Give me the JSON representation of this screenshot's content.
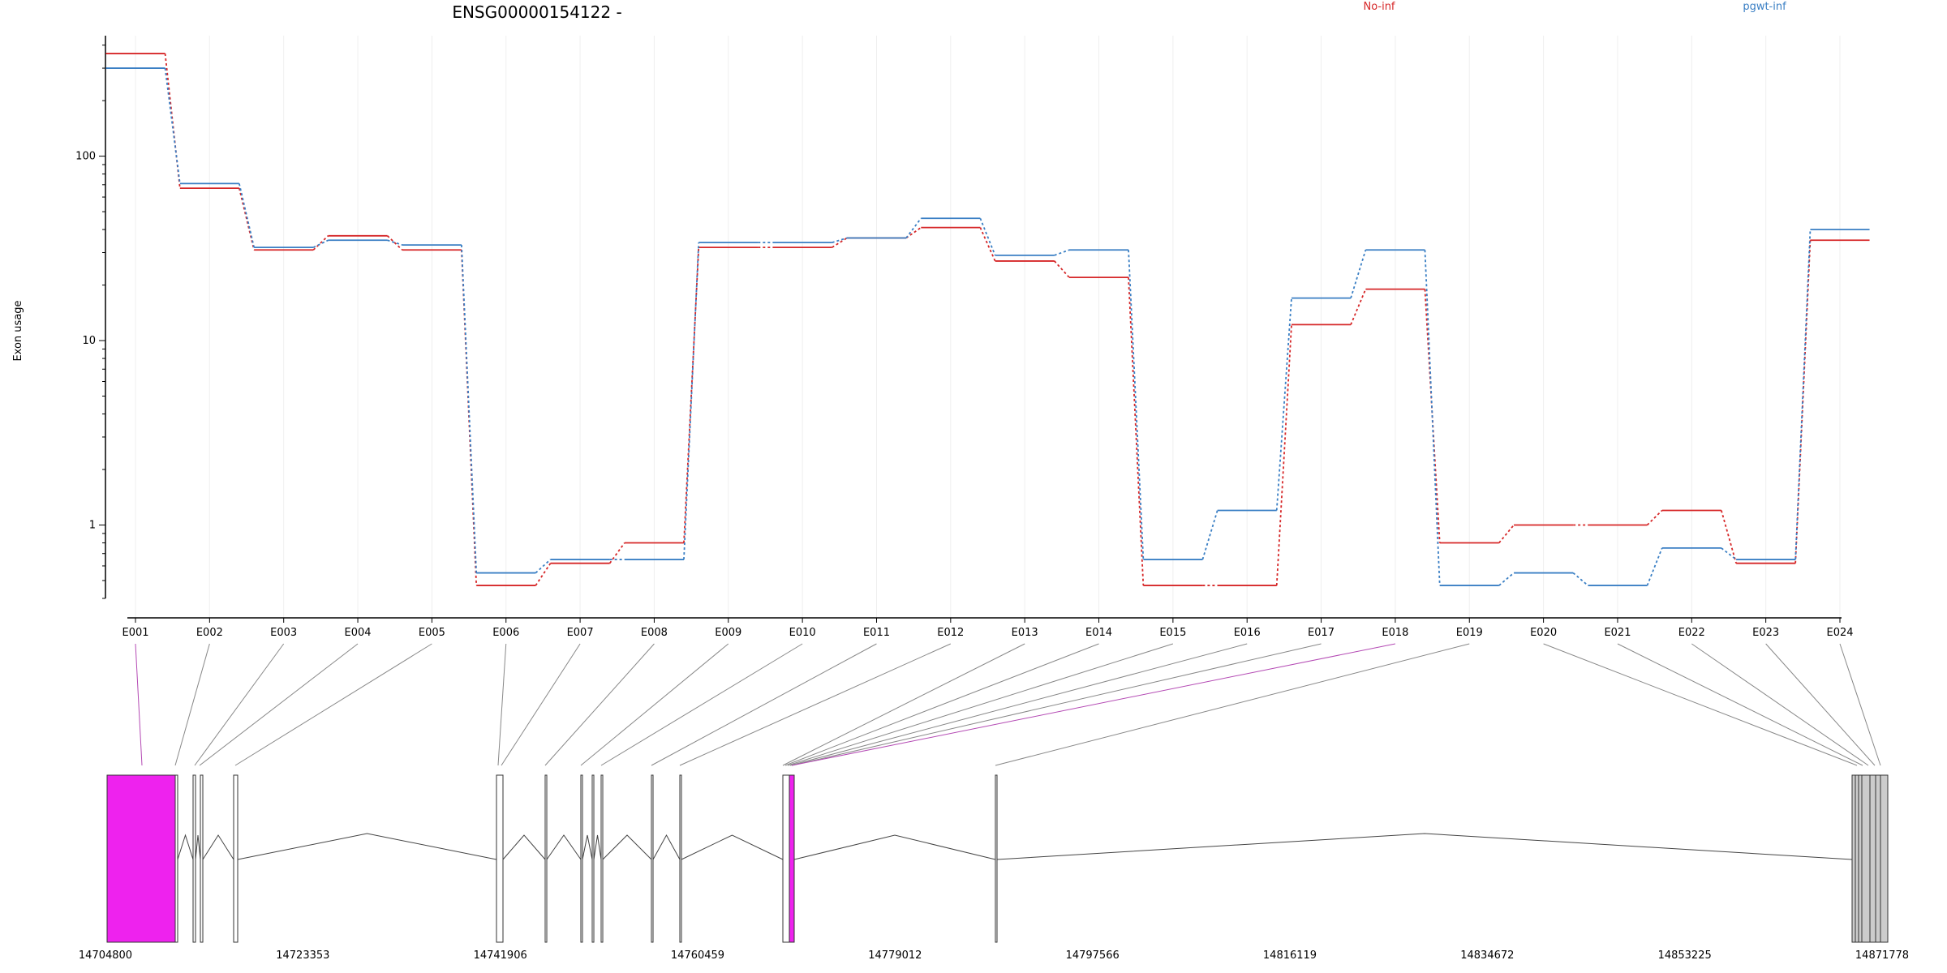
{
  "chart_data": {
    "type": "line",
    "title": "ENSG00000154122 -",
    "ylabel": "Exon usage",
    "xlabel": "",
    "y_scale": "log",
    "ylim": [
      0.4,
      450
    ],
    "y_ticks": [
      {
        "value": 1,
        "label": "1"
      },
      {
        "value": 10,
        "label": "10"
      },
      {
        "value": 100,
        "label": "100"
      }
    ],
    "grid": "vertical",
    "legend_placement": "top-right",
    "categories": [
      "E001",
      "E002",
      "E003",
      "E004",
      "E005",
      "E006",
      "E007",
      "E008",
      "E009",
      "E010",
      "E011",
      "E012",
      "E013",
      "E014",
      "E015",
      "E016",
      "E017",
      "E018",
      "E019",
      "E020",
      "E021",
      "E022",
      "E023",
      "E024"
    ],
    "series": [
      {
        "name": "No-inf",
        "color": "#d62728",
        "values": [
          360,
          67,
          31,
          37,
          31,
          0.47,
          0.62,
          0.8,
          32,
          32,
          36,
          41,
          27,
          22,
          0.47,
          0.47,
          12.2,
          19,
          0.8,
          1.0,
          1.0,
          1.2,
          0.62,
          35
        ]
      },
      {
        "name": "pgwt-inf",
        "color": "#3a7fc4",
        "values": [
          300,
          71,
          32,
          35,
          33,
          0.55,
          0.65,
          0.65,
          34,
          34,
          36,
          46,
          29,
          31,
          0.65,
          1.2,
          17,
          31,
          0.47,
          0.55,
          0.47,
          0.75,
          0.65,
          40
        ]
      }
    ],
    "gene_model": {
      "genomic_range": [
        14704800,
        14871778
      ],
      "axis_ticks": [
        "14704800",
        "14723353",
        "14741906",
        "14760459",
        "14779012",
        "14797566",
        "14816119",
        "14834672",
        "14853225",
        "14871778"
      ],
      "highlight_color": "#ee22ee",
      "highlighted_exons": [
        "E001",
        "E018"
      ]
    }
  }
}
